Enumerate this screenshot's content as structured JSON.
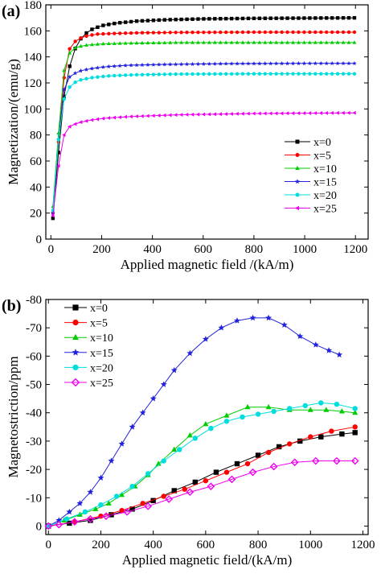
{
  "chart_data": [
    {
      "type": "line",
      "panel_label": "(a)",
      "xlabel": "Applied magnetic field /(kA/m)",
      "ylabel": "Magnetization/(emu/g)",
      "xlim": [
        -20,
        1250
      ],
      "ylim": [
        0,
        180
      ],
      "xticks": [
        0,
        200,
        400,
        600,
        800,
        1000,
        1200
      ],
      "yticks": [
        0,
        20,
        40,
        60,
        80,
        100,
        120,
        140,
        160,
        180
      ],
      "x_tick_labels": [
        "0",
        "200",
        "400",
        "600",
        "800",
        "1000",
        "1200"
      ],
      "y_tick_labels": [
        "0",
        "20",
        "40",
        "60",
        "80",
        "100",
        "120",
        "140",
        "160",
        "180"
      ],
      "legend_position": "right-center",
      "series": [
        {
          "name": "x=0",
          "color": "#000000",
          "marker": "square",
          "sat": 170,
          "sweep": [
            [
              8,
              16
            ],
            [
              16,
              30
            ],
            [
              24,
              50
            ],
            [
              32,
              72
            ],
            [
              40,
              88
            ],
            [
              55,
              115
            ],
            [
              70,
              130
            ],
            [
              90,
              144
            ],
            [
              110,
              152
            ],
            [
              130,
              157
            ],
            [
              160,
              161
            ],
            [
              200,
              164
            ],
            [
              260,
              166
            ],
            [
              340,
              167.5
            ],
            [
              450,
              168.5
            ],
            [
              600,
              169.2
            ],
            [
              800,
              169.6
            ],
            [
              1000,
              169.8
            ],
            [
              1200,
              170
            ]
          ]
        },
        {
          "name": "x=5",
          "color": "#ff0000",
          "marker": "circle",
          "sat": 159,
          "sweep": [
            [
              8,
              20
            ],
            [
              16,
              38
            ],
            [
              24,
              58
            ],
            [
              32,
              80
            ],
            [
              40,
              100
            ],
            [
              55,
              130
            ],
            [
              70,
              145
            ],
            [
              90,
              151
            ],
            [
              110,
              154
            ],
            [
              140,
              156
            ],
            [
              180,
              157.5
            ],
            [
              250,
              158
            ],
            [
              350,
              158.5
            ],
            [
              500,
              158.8
            ],
            [
              800,
              159
            ],
            [
              1200,
              159
            ]
          ]
        },
        {
          "name": "x=10",
          "color": "#00cc00",
          "marker": "triangle-up",
          "sat": 151,
          "sweep": [
            [
              8,
              25
            ],
            [
              16,
              45
            ],
            [
              24,
              62
            ],
            [
              32,
              88
            ],
            [
              40,
              108
            ],
            [
              50,
              128
            ],
            [
              65,
              140
            ],
            [
              80,
              145
            ],
            [
              100,
              147.5
            ],
            [
              140,
              149
            ],
            [
              200,
              150
            ],
            [
              300,
              150.5
            ],
            [
              500,
              151
            ],
            [
              800,
              151
            ],
            [
              1200,
              151
            ]
          ]
        },
        {
          "name": "x=15",
          "color": "#2222dd",
          "marker": "star",
          "sat": 135,
          "sweep": [
            [
              8,
              20
            ],
            [
              16,
              40
            ],
            [
              24,
              60
            ],
            [
              32,
              82
            ],
            [
              40,
              102
            ],
            [
              55,
              118
            ],
            [
              70,
              124
            ],
            [
              90,
              127
            ],
            [
              120,
              129.5
            ],
            [
              160,
              131
            ],
            [
              220,
              132.5
            ],
            [
              300,
              133.5
            ],
            [
              450,
              134.2
            ],
            [
              700,
              134.8
            ],
            [
              1000,
              135
            ],
            [
              1200,
              135
            ]
          ]
        },
        {
          "name": "x=20",
          "color": "#00dddd",
          "marker": "circle",
          "sat": 127,
          "sweep": [
            [
              8,
              22
            ],
            [
              16,
              42
            ],
            [
              24,
              60
            ],
            [
              32,
              82
            ],
            [
              40,
              98
            ],
            [
              55,
              110
            ],
            [
              70,
              116
            ],
            [
              90,
              120
            ],
            [
              120,
              122.5
            ],
            [
              160,
              124
            ],
            [
              220,
              125.3
            ],
            [
              320,
              126.2
            ],
            [
              500,
              126.8
            ],
            [
              800,
              127
            ],
            [
              1200,
              127
            ]
          ]
        },
        {
          "name": "x=25",
          "color": "#ee00ee",
          "marker": "triangle-left",
          "sat": 97,
          "sweep": [
            [
              8,
              18
            ],
            [
              16,
              32
            ],
            [
              24,
              45
            ],
            [
              32,
              60
            ],
            [
              40,
              72
            ],
            [
              55,
              82
            ],
            [
              70,
              86
            ],
            [
              90,
              88
            ],
            [
              120,
              90
            ],
            [
              160,
              91.5
            ],
            [
              220,
              93
            ],
            [
              320,
              94.2
            ],
            [
              500,
              95.5
            ],
            [
              800,
              96.5
            ],
            [
              1200,
              97
            ]
          ]
        }
      ]
    },
    {
      "type": "line",
      "panel_label": "(b)",
      "xlabel": "Applied magnetic field/(kA/m)",
      "ylabel": "Magnetostriction/ppm",
      "xlim": [
        -10,
        1220
      ],
      "ylim": [
        3,
        -80
      ],
      "xticks": [
        0,
        200,
        400,
        600,
        800,
        1000,
        1200
      ],
      "yticks": [
        0,
        -10,
        -20,
        -30,
        -40,
        -50,
        -60,
        -70,
        -80
      ],
      "x_tick_labels": [
        "0",
        "200",
        "400",
        "600",
        "800",
        "1000",
        "1200"
      ],
      "y_tick_labels": [
        "0",
        "-10",
        "-20",
        "-30",
        "-40",
        "-50",
        "-60",
        "-70",
        "-80"
      ],
      "legend_position": "top-left",
      "series": [
        {
          "name": "x=0",
          "color": "#000000",
          "marker": "square",
          "points": [
            [
              0,
              0
            ],
            [
              80,
              -1
            ],
            [
              160,
              -2
            ],
            [
              240,
              -4
            ],
            [
              320,
              -6
            ],
            [
              400,
              -9
            ],
            [
              480,
              -12.5
            ],
            [
              560,
              -15.5
            ],
            [
              640,
              -19
            ],
            [
              720,
              -22
            ],
            [
              800,
              -25
            ],
            [
              880,
              -28
            ],
            [
              960,
              -30
            ],
            [
              1040,
              -31.5
            ],
            [
              1120,
              -32.5
            ],
            [
              1170,
              -33
            ]
          ]
        },
        {
          "name": "x=5",
          "color": "#ff0000",
          "marker": "circle",
          "points": [
            [
              0,
              0
            ],
            [
              100,
              -1.5
            ],
            [
              200,
              -3.5
            ],
            [
              280,
              -5.5
            ],
            [
              360,
              -8
            ],
            [
              440,
              -10.5
            ],
            [
              520,
              -13
            ],
            [
              600,
              -16
            ],
            [
              680,
              -19
            ],
            [
              760,
              -22
            ],
            [
              840,
              -26
            ],
            [
              920,
              -29
            ],
            [
              1000,
              -31.5
            ],
            [
              1080,
              -33.5
            ],
            [
              1170,
              -35
            ]
          ]
        },
        {
          "name": "x=10",
          "color": "#00cc00",
          "marker": "triangle-up",
          "points": [
            [
              0,
              0
            ],
            [
              60,
              -2
            ],
            [
              120,
              -4
            ],
            [
              180,
              -6
            ],
            [
              230,
              -8
            ],
            [
              280,
              -11
            ],
            [
              330,
              -14
            ],
            [
              380,
              -18
            ],
            [
              420,
              -22
            ],
            [
              480,
              -27
            ],
            [
              540,
              -32
            ],
            [
              600,
              -36
            ],
            [
              680,
              -39
            ],
            [
              760,
              -42
            ],
            [
              840,
              -42
            ],
            [
              920,
              -41
            ],
            [
              1000,
              -41
            ],
            [
              1060,
              -41
            ],
            [
              1120,
              -40.5
            ],
            [
              1170,
              -40
            ]
          ]
        },
        {
          "name": "x=15",
          "color": "#2222dd",
          "marker": "star",
          "points": [
            [
              0,
              0
            ],
            [
              40,
              -2
            ],
            [
              80,
              -5
            ],
            [
              120,
              -8
            ],
            [
              160,
              -12
            ],
            [
              200,
              -17
            ],
            [
              240,
              -23
            ],
            [
              280,
              -29
            ],
            [
              320,
              -35
            ],
            [
              360,
              -40
            ],
            [
              400,
              -45
            ],
            [
              440,
              -50
            ],
            [
              480,
              -55
            ],
            [
              540,
              -61
            ],
            [
              600,
              -66
            ],
            [
              660,
              -70
            ],
            [
              720,
              -72.5
            ],
            [
              780,
              -73.5
            ],
            [
              840,
              -73.5
            ],
            [
              900,
              -71
            ],
            [
              960,
              -67
            ],
            [
              1020,
              -64
            ],
            [
              1070,
              -62
            ],
            [
              1110,
              -60.5
            ]
          ]
        },
        {
          "name": "x=20",
          "color": "#00dddd",
          "marker": "circle",
          "points": [
            [
              0,
              0
            ],
            [
              70,
              -2.5
            ],
            [
              140,
              -5
            ],
            [
              200,
              -7.5
            ],
            [
              260,
              -10.5
            ],
            [
              320,
              -14
            ],
            [
              380,
              -18.5
            ],
            [
              440,
              -23
            ],
            [
              500,
              -27
            ],
            [
              560,
              -31
            ],
            [
              620,
              -34.5
            ],
            [
              680,
              -37
            ],
            [
              740,
              -38.5
            ],
            [
              800,
              -39.5
            ],
            [
              860,
              -40.5
            ],
            [
              920,
              -41.5
            ],
            [
              980,
              -42.5
            ],
            [
              1040,
              -43.5
            ],
            [
              1100,
              -43
            ],
            [
              1170,
              -41.5
            ]
          ]
        },
        {
          "name": "x=25",
          "color": "#ee00ee",
          "marker": "diamond",
          "points": [
            [
              0,
              0
            ],
            [
              40,
              -0.5
            ],
            [
              100,
              -1.5
            ],
            [
              160,
              -2.5
            ],
            [
              220,
              -3.5
            ],
            [
              300,
              -5
            ],
            [
              380,
              -7
            ],
            [
              460,
              -9.5
            ],
            [
              540,
              -12
            ],
            [
              620,
              -14
            ],
            [
              700,
              -16.5
            ],
            [
              780,
              -19
            ],
            [
              860,
              -21
            ],
            [
              940,
              -22.5
            ],
            [
              1020,
              -23
            ],
            [
              1100,
              -23
            ],
            [
              1170,
              -23
            ]
          ]
        }
      ]
    }
  ]
}
